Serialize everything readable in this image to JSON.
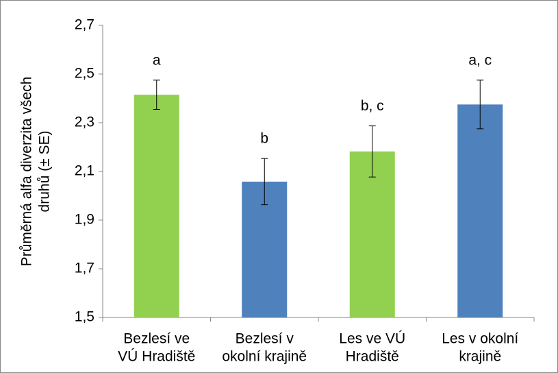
{
  "chart_data": {
    "type": "bar",
    "ylabel": [
      "Průměrná alfa diverzita všech",
      "druhů (± SE)"
    ],
    "categories": [
      [
        "Bezlesí ve",
        "VÚ Hradiště"
      ],
      [
        "Bezlesí v",
        "okolní krajině"
      ],
      [
        "Les ve VÚ",
        "Hradiště"
      ],
      [
        "Les v okolní",
        "krajině"
      ]
    ],
    "values": [
      2.415,
      2.058,
      2.182,
      2.375
    ],
    "errors": [
      0.06,
      0.095,
      0.105,
      0.1
    ],
    "annotations": [
      "a",
      "b",
      "b, c",
      "a, c"
    ],
    "colors": [
      "#92d050",
      "#4f81bd",
      "#92d050",
      "#4f81bd"
    ],
    "ylim": [
      1.5,
      2.7
    ],
    "yticks": [
      {
        "value": 1.5,
        "label": "1,5"
      },
      {
        "value": 1.7,
        "label": "1,7"
      },
      {
        "value": 1.9,
        "label": "1,9"
      },
      {
        "value": 2.1,
        "label": "2,1"
      },
      {
        "value": 2.3,
        "label": "2,3"
      },
      {
        "value": 2.5,
        "label": "2,5"
      },
      {
        "value": 2.7,
        "label": "2,7"
      }
    ],
    "grid": false
  }
}
